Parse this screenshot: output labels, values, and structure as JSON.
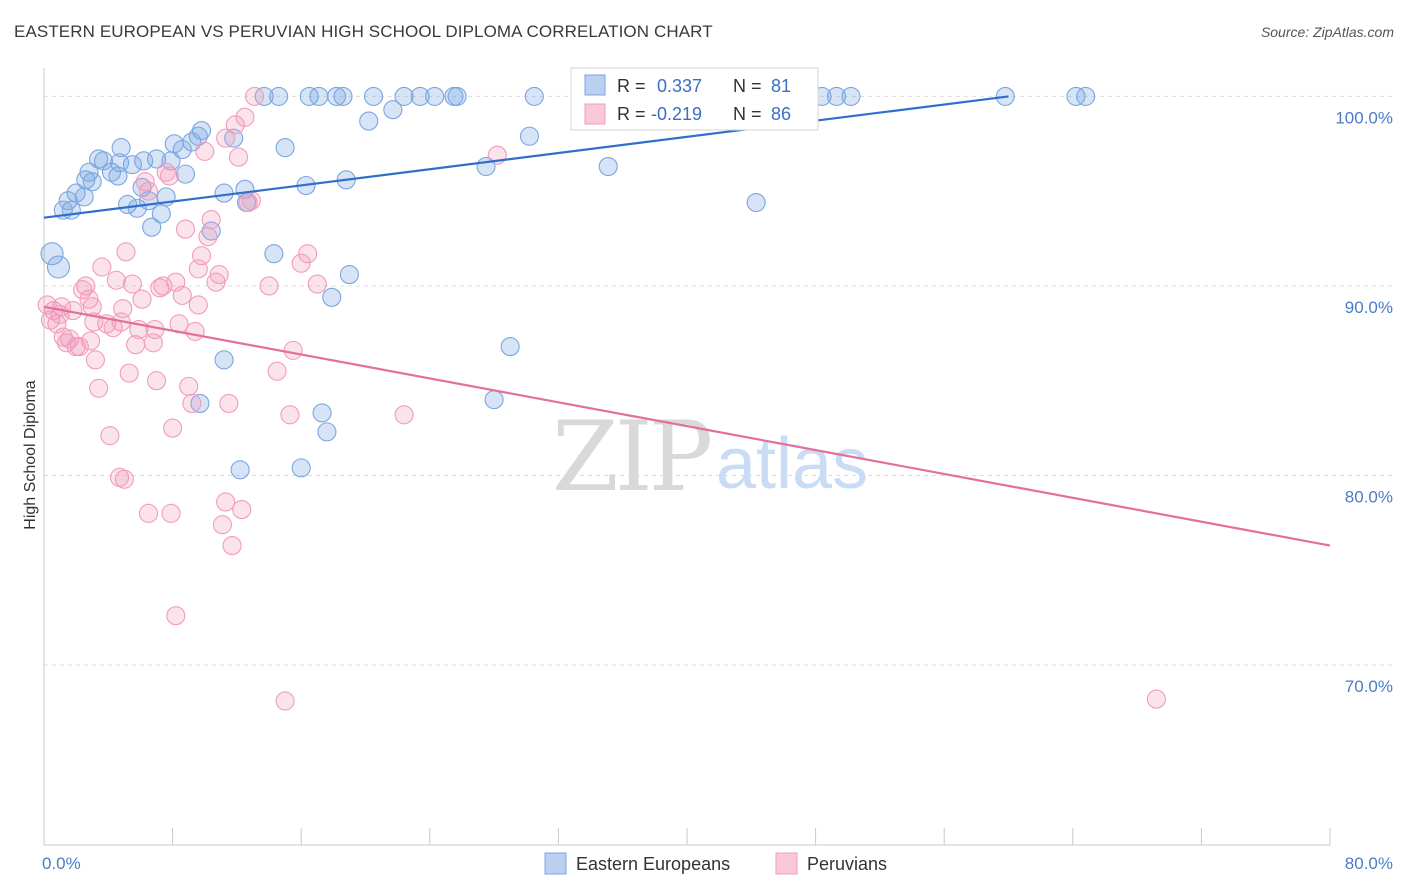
{
  "title": "EASTERN EUROPEAN VS PERUVIAN HIGH SCHOOL DIPLOMA CORRELATION CHART",
  "source": "Source: ZipAtlas.com",
  "watermark": {
    "zip": "ZIP",
    "atlas": "atlas"
  },
  "chart_data": {
    "type": "scatter",
    "title": "EASTERN EUROPEAN VS PERUVIAN HIGH SCHOOL DIPLOMA CORRELATION CHART",
    "xlabel": "",
    "ylabel": "High School Diploma",
    "xlim": [
      0,
      80
    ],
    "ylim": [
      60.5,
      101.5
    ],
    "x_ticks": [
      {
        "value": 0,
        "label": "0.0%"
      },
      {
        "value": 80,
        "label": "80.0%"
      }
    ],
    "x_minor_ticks": [
      0,
      8,
      16,
      24,
      32,
      40,
      48,
      56,
      64,
      72,
      80
    ],
    "y_ticks": [
      {
        "value": 70,
        "label": "70.0%"
      },
      {
        "value": 80,
        "label": "80.0%"
      },
      {
        "value": 90,
        "label": "90.0%"
      },
      {
        "value": 100,
        "label": "100.0%"
      }
    ],
    "grid": true,
    "legend": {
      "position": "top-center",
      "entries": [
        {
          "series": "Eastern Europeans",
          "r_label": "R =",
          "r_value": "0.337",
          "n_label": "N =",
          "n_value": "81"
        },
        {
          "series": "Peruvians",
          "r_label": "R =",
          "r_value": "-0.219",
          "n_label": "N =",
          "n_value": "86"
        }
      ]
    },
    "series": [
      {
        "name": "Eastern Europeans",
        "color": "#7aa6e0",
        "line_color": "#2f6fcb",
        "trend": {
          "x0": 0,
          "y0": 93.6,
          "x1": 60,
          "y1": 100.0
        },
        "points": [
          [
            0.5,
            91.7
          ],
          [
            0.9,
            91.0
          ],
          [
            1.2,
            94.0
          ],
          [
            1.5,
            94.5
          ],
          [
            1.7,
            94.0
          ],
          [
            2.0,
            94.9
          ],
          [
            2.5,
            94.7
          ],
          [
            2.8,
            96.0
          ],
          [
            3.0,
            95.5
          ],
          [
            3.4,
            96.7
          ],
          [
            3.7,
            96.6
          ],
          [
            4.2,
            96.0
          ],
          [
            4.6,
            95.8
          ],
          [
            4.8,
            97.3
          ],
          [
            5.2,
            94.3
          ],
          [
            5.5,
            96.4
          ],
          [
            5.8,
            94.1
          ],
          [
            6.2,
            96.6
          ],
          [
            6.5,
            94.5
          ],
          [
            6.7,
            93.1
          ],
          [
            7.0,
            96.7
          ],
          [
            7.3,
            93.8
          ],
          [
            7.6,
            94.7
          ],
          [
            7.9,
            96.6
          ],
          [
            8.1,
            97.5
          ],
          [
            8.6,
            97.2
          ],
          [
            8.8,
            95.9
          ],
          [
            9.2,
            97.6
          ],
          [
            9.6,
            97.9
          ],
          [
            9.8,
            98.2
          ],
          [
            10.4,
            92.9
          ],
          [
            11.2,
            94.9
          ],
          [
            11.8,
            97.8
          ],
          [
            12.2,
            80.3
          ],
          [
            12.5,
            95.1
          ],
          [
            12.6,
            94.4
          ],
          [
            13.7,
            100.0
          ],
          [
            14.3,
            91.7
          ],
          [
            14.6,
            100.0
          ],
          [
            15.0,
            97.3
          ],
          [
            16.0,
            80.4
          ],
          [
            16.3,
            95.3
          ],
          [
            16.5,
            100.0
          ],
          [
            17.1,
            100.0
          ],
          [
            17.3,
            83.3
          ],
          [
            17.6,
            82.3
          ],
          [
            17.9,
            89.4
          ],
          [
            18.2,
            100.0
          ],
          [
            18.6,
            100.0
          ],
          [
            18.8,
            95.6
          ],
          [
            19.0,
            90.6
          ],
          [
            20.2,
            98.7
          ],
          [
            20.5,
            100.0
          ],
          [
            21.7,
            99.3
          ],
          [
            22.4,
            100.0
          ],
          [
            23.4,
            100.0
          ],
          [
            24.3,
            100.0
          ],
          [
            25.5,
            100.0
          ],
          [
            25.7,
            100.0
          ],
          [
            27.5,
            96.3
          ],
          [
            28.0,
            84.0
          ],
          [
            29.0,
            86.8
          ],
          [
            30.2,
            97.9
          ],
          [
            30.5,
            100.0
          ],
          [
            34.1,
            100.0
          ],
          [
            35.1,
            96.3
          ],
          [
            35.3,
            100.0
          ],
          [
            37.4,
            100.0
          ],
          [
            42.2,
            100.0
          ],
          [
            44.3,
            94.4
          ],
          [
            48.4,
            100.0
          ],
          [
            49.3,
            100.0
          ],
          [
            50.2,
            100.0
          ],
          [
            59.8,
            100.0
          ],
          [
            64.2,
            100.0
          ],
          [
            64.8,
            100.0
          ],
          [
            9.7,
            83.8
          ],
          [
            11.2,
            86.1
          ],
          [
            4.7,
            96.5
          ],
          [
            2.6,
            95.6
          ],
          [
            6.1,
            95.2
          ]
        ]
      },
      {
        "name": "Peruvians",
        "color": "#f29bbb",
        "line_color": "#e3709b",
        "trend": {
          "x0": 0,
          "y0": 88.9,
          "x1": 80,
          "y1": 76.3
        },
        "points": [
          [
            0.2,
            89.0
          ],
          [
            0.4,
            88.2
          ],
          [
            0.6,
            88.7
          ],
          [
            0.8,
            88.0
          ],
          [
            1.0,
            88.5
          ],
          [
            1.2,
            87.3
          ],
          [
            1.4,
            87.0
          ],
          [
            1.6,
            87.2
          ],
          [
            1.8,
            88.7
          ],
          [
            2.0,
            86.8
          ],
          [
            2.2,
            86.8
          ],
          [
            2.4,
            89.8
          ],
          [
            2.6,
            90.0
          ],
          [
            2.8,
            89.3
          ],
          [
            3.0,
            88.9
          ],
          [
            3.2,
            86.1
          ],
          [
            3.4,
            84.6
          ],
          [
            3.6,
            91.0
          ],
          [
            3.9,
            88.0
          ],
          [
            4.1,
            82.1
          ],
          [
            4.3,
            87.8
          ],
          [
            4.5,
            90.3
          ],
          [
            4.7,
            79.9
          ],
          [
            4.9,
            88.8
          ],
          [
            5.1,
            91.8
          ],
          [
            5.3,
            85.4
          ],
          [
            5.5,
            90.1
          ],
          [
            5.7,
            86.9
          ],
          [
            5.9,
            87.7
          ],
          [
            6.1,
            89.3
          ],
          [
            6.3,
            95.5
          ],
          [
            6.5,
            95.0
          ],
          [
            6.8,
            87.0
          ],
          [
            7.0,
            85.0
          ],
          [
            7.2,
            89.9
          ],
          [
            7.4,
            90.0
          ],
          [
            7.6,
            96.0
          ],
          [
            7.8,
            95.8
          ],
          [
            8.0,
            82.5
          ],
          [
            8.2,
            90.2
          ],
          [
            8.4,
            88.0
          ],
          [
            8.6,
            89.5
          ],
          [
            8.8,
            93.0
          ],
          [
            9.0,
            84.7
          ],
          [
            9.2,
            83.8
          ],
          [
            9.4,
            87.6
          ],
          [
            9.6,
            89.0
          ],
          [
            9.8,
            91.6
          ],
          [
            10.0,
            97.1
          ],
          [
            10.2,
            92.6
          ],
          [
            10.4,
            93.5
          ],
          [
            10.7,
            90.2
          ],
          [
            10.9,
            90.6
          ],
          [
            11.1,
            77.4
          ],
          [
            11.3,
            78.6
          ],
          [
            11.5,
            83.8
          ],
          [
            11.7,
            76.3
          ],
          [
            11.9,
            98.5
          ],
          [
            12.1,
            96.8
          ],
          [
            12.3,
            78.2
          ],
          [
            12.5,
            98.9
          ],
          [
            12.7,
            94.4
          ],
          [
            12.9,
            94.5
          ],
          [
            13.1,
            100.0
          ],
          [
            14.0,
            90.0
          ],
          [
            14.5,
            85.5
          ],
          [
            15.0,
            68.1
          ],
          [
            15.3,
            83.2
          ],
          [
            15.5,
            86.6
          ],
          [
            16.0,
            91.2
          ],
          [
            16.4,
            91.7
          ],
          [
            17.0,
            90.1
          ],
          [
            22.4,
            83.2
          ],
          [
            28.2,
            96.9
          ],
          [
            5.0,
            79.8
          ],
          [
            6.5,
            78.0
          ],
          [
            8.2,
            72.6
          ],
          [
            69.2,
            68.2
          ],
          [
            7.9,
            78.0
          ],
          [
            3.1,
            88.1
          ],
          [
            1.1,
            88.9
          ],
          [
            2.9,
            87.1
          ],
          [
            4.8,
            88.1
          ],
          [
            6.9,
            87.7
          ],
          [
            9.6,
            90.9
          ],
          [
            11.3,
            97.8
          ]
        ]
      }
    ],
    "bottom_legend": [
      "Eastern Europeans",
      "Peruvians"
    ]
  }
}
